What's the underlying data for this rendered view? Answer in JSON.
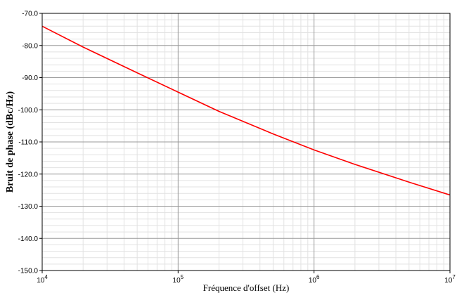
{
  "chart_data": {
    "type": "line",
    "title": "",
    "xlabel": "Fréquence d'offset (Hz)",
    "ylabel": "Bruit de phase (dBc/Hz)",
    "x_scale": "log",
    "xlim": [
      10000,
      10000000
    ],
    "ylim": [
      -150,
      -70
    ],
    "x_ticks": [
      {
        "base": "10",
        "exp": "4"
      },
      {
        "base": "10",
        "exp": "5"
      },
      {
        "base": "10",
        "exp": "6"
      },
      {
        "base": "10",
        "exp": "7"
      }
    ],
    "y_ticks": [
      "-70.0",
      "-80.0",
      "-90.0",
      "-100.0",
      "-110.0",
      "-120.0",
      "-130.0",
      "-140.0",
      "-150.0"
    ],
    "grid": true,
    "line_color": "#ff0000",
    "series": [
      {
        "x": [
          10000,
          20000,
          50000,
          100000,
          200000,
          500000,
          1000000,
          2000000,
          5000000,
          10000000
        ],
        "y": [
          -74,
          -80.5,
          -88.5,
          -94.5,
          -100.5,
          -107.5,
          -112.5,
          -117,
          -122.5,
          -126.5
        ]
      }
    ]
  }
}
